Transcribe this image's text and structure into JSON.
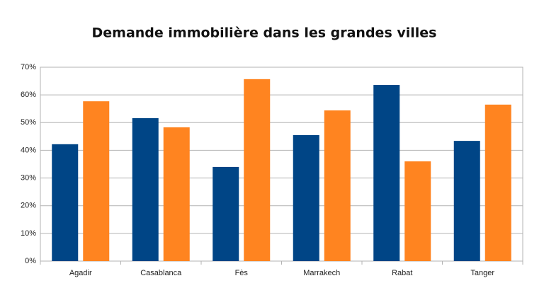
{
  "chart_data": {
    "type": "bar",
    "title": "Demande immobilière dans les grandes villes",
    "categories": [
      "Agadir",
      "Casablanca",
      "Fès",
      "Marrakech",
      "Rabat",
      "Tanger"
    ],
    "series": [
      {
        "color": "#004586",
        "values": [
          42.2,
          51.6,
          34.0,
          45.5,
          63.6,
          43.4
        ]
      },
      {
        "color": "#ff8420",
        "values": [
          57.7,
          48.3,
          65.7,
          54.4,
          36.0,
          56.5
        ]
      }
    ],
    "ylim": [
      0,
      70
    ],
    "yticks": [
      {
        "value": 0,
        "label": "0%"
      },
      {
        "value": 10,
        "label": "10%"
      },
      {
        "value": 20,
        "label": "20%"
      },
      {
        "value": 30,
        "label": "30%"
      },
      {
        "value": 40,
        "label": "40%"
      },
      {
        "value": 50,
        "label": "50%"
      },
      {
        "value": 60,
        "label": "60%"
      },
      {
        "value": 70,
        "label": "70%"
      }
    ],
    "grid": true
  }
}
